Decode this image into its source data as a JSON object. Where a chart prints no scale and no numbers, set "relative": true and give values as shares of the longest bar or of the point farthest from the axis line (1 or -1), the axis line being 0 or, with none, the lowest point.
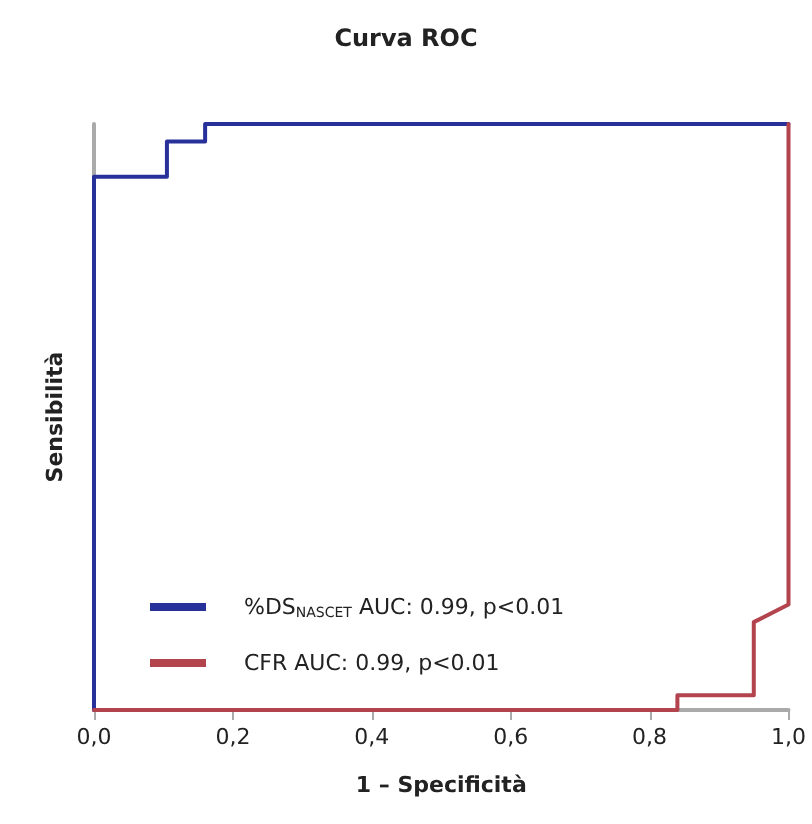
{
  "chart_data": {
    "type": "line",
    "title": "Curva ROC",
    "xlabel": "1 – Specificità",
    "ylabel": "Sensibilità",
    "relative": true,
    "tick_labels": "x",
    "xlim": [
      0,
      1
    ],
    "xticks": [
      {
        "value": 0,
        "label": "0,0"
      },
      {
        "value": 0.2,
        "label": "0,2"
      },
      {
        "value": 0.4,
        "label": "0,4"
      },
      {
        "value": 0.6,
        "label": "0,6"
      },
      {
        "value": 0.8,
        "label": "0,8"
      },
      {
        "value": 1,
        "label": "1,0"
      }
    ],
    "grid": false,
    "legend": "bottom left",
    "marker": "none",
    "line_style": "solid",
    "series": [
      {
        "name": "%DS$_{NASCET}$ AUC: 0.99, p<0.01",
        "color": "#28319a",
        "x": [
          0,
          0,
          0.105,
          0.105,
          0.16,
          0.16,
          1
        ],
        "values": [
          0,
          0.91,
          0.91,
          0.97,
          0.97,
          1,
          1
        ]
      },
      {
        "name": "CFR AUC: 0.99, p<0.01",
        "color": "#b3434d",
        "x": [
          0,
          0.84,
          0.84,
          0.95,
          0.95,
          1,
          1
        ],
        "values": [
          0,
          0,
          0.025,
          0.025,
          0.15,
          0.18,
          1
        ]
      }
    ]
  }
}
